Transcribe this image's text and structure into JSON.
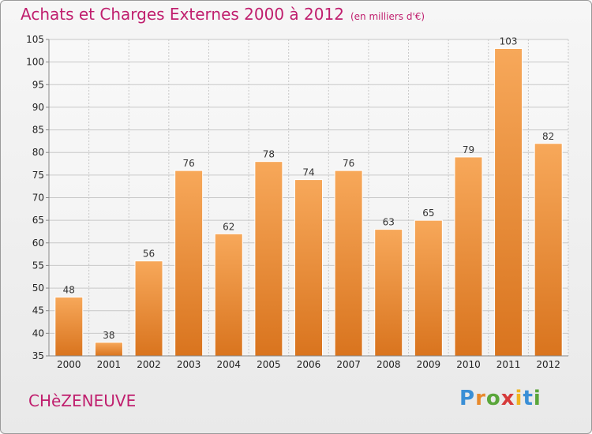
{
  "title": "Achats et Charges Externes 2000 à 2012",
  "unit_note": "(en milliers d'€)",
  "commune": "CHèZENEUVE",
  "brand": {
    "letters": [
      "P",
      "r",
      "o",
      "x",
      "i",
      "t",
      "i"
    ],
    "colors": [
      "#3a8fd6",
      "#e8892c",
      "#5aa63a",
      "#d63a3a",
      "#f0b41f",
      "#3a8fd6",
      "#5aa63a"
    ]
  },
  "colors": {
    "bar_top": "#f7a85a",
    "bar_bottom": "#d9741e",
    "title": "#c01f6e"
  },
  "chart_data": {
    "type": "bar",
    "categories": [
      "2000",
      "2001",
      "2002",
      "2003",
      "2004",
      "2005",
      "2006",
      "2007",
      "2008",
      "2009",
      "2010",
      "2011",
      "2012"
    ],
    "values": [
      48,
      38,
      56,
      76,
      62,
      78,
      74,
      76,
      63,
      65,
      79,
      103,
      82
    ],
    "ylim": [
      35,
      105
    ],
    "yticks": [
      35,
      40,
      45,
      50,
      55,
      60,
      65,
      70,
      75,
      80,
      85,
      90,
      95,
      100,
      105
    ],
    "grid": true
  }
}
